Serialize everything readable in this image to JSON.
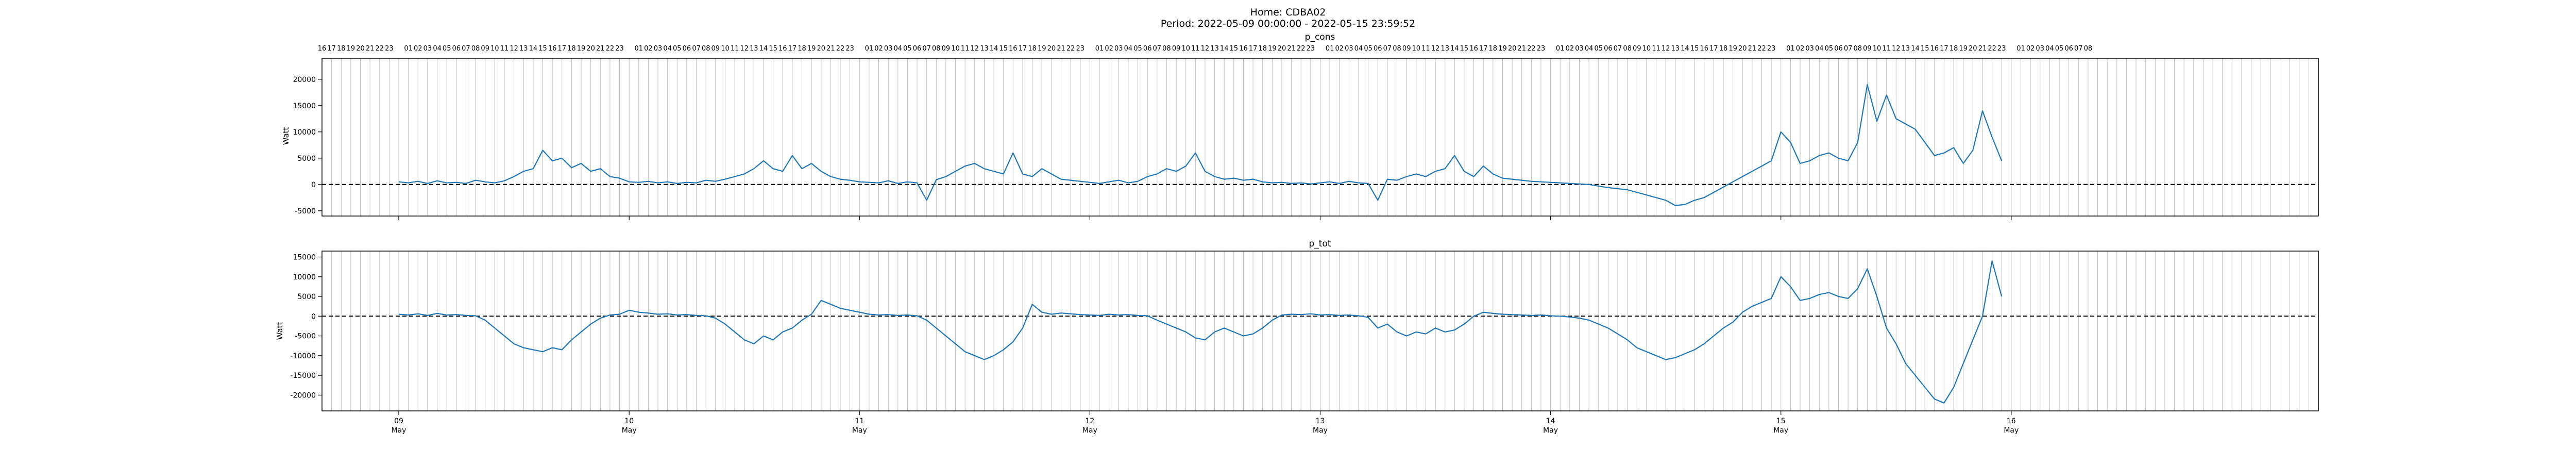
{
  "figure": {
    "title_line1": "Home: CDBA02",
    "title_line2": "Period: 2022-05-09 00:00:00 - 2022-05-15 23:59:52"
  },
  "hour_labels": [
    "16",
    "17",
    "18",
    "19",
    "20",
    "21",
    "22",
    "23",
    "01",
    "02",
    "03",
    "04",
    "05",
    "06",
    "07",
    "08",
    "09",
    "10",
    "11",
    "12",
    "13",
    "14",
    "15",
    "16",
    "17",
    "18",
    "19",
    "20",
    "21",
    "22",
    "23",
    "01",
    "02",
    "03",
    "04",
    "05",
    "06",
    "07",
    "08",
    "09",
    "10",
    "11",
    "12",
    "13",
    "14",
    "15",
    "16",
    "17",
    "18",
    "19",
    "20",
    "21",
    "22",
    "23",
    "01",
    "02",
    "03",
    "04",
    "05",
    "06",
    "07",
    "08",
    "09",
    "10",
    "11",
    "12",
    "13",
    "14",
    "15",
    "16",
    "17",
    "18",
    "19",
    "20",
    "21",
    "22",
    "23",
    "01",
    "02",
    "03",
    "04",
    "05",
    "06",
    "07",
    "08",
    "09",
    "10",
    "11",
    "12",
    "13",
    "14",
    "15",
    "16",
    "17",
    "18",
    "19",
    "20",
    "21",
    "22",
    "23",
    "01",
    "02",
    "03",
    "04",
    "05",
    "06",
    "07",
    "08",
    "09",
    "10",
    "11",
    "12",
    "13",
    "14",
    "15",
    "16",
    "17",
    "18",
    "19",
    "20",
    "21",
    "22",
    "23",
    "01",
    "02",
    "03",
    "04",
    "05",
    "06",
    "07",
    "08",
    "09",
    "10",
    "11",
    "12",
    "13",
    "14",
    "15",
    "16",
    "17",
    "18",
    "19",
    "20",
    "21",
    "22",
    "23",
    "01",
    "02",
    "03",
    "04",
    "05",
    "06",
    "07",
    "08",
    "09",
    "10",
    "11",
    "12",
    "13",
    "14",
    "15",
    "16",
    "17",
    "18",
    "19",
    "20",
    "21",
    "22",
    "23",
    "01",
    "02",
    "03",
    "04",
    "05",
    "06",
    "07",
    "08"
  ],
  "day_ticks": [
    {
      "day": "09",
      "month": "May"
    },
    {
      "day": "10",
      "month": "May"
    },
    {
      "day": "11",
      "month": "May"
    },
    {
      "day": "12",
      "month": "May"
    },
    {
      "day": "13",
      "month": "May"
    },
    {
      "day": "14",
      "month": "May"
    },
    {
      "day": "15",
      "month": "May"
    },
    {
      "day": "16",
      "month": "May"
    }
  ],
  "chart_data": [
    {
      "type": "line",
      "title": "p_cons",
      "ylabel": "Watt",
      "x_start": "2022-05-08 16:00",
      "x_end": "2022-05-17 08:00",
      "ylim": [
        -6000,
        24000
      ],
      "yticks": [
        -5000,
        0,
        5000,
        10000,
        15000,
        20000
      ],
      "zero_line": "dashed",
      "grid": "vertical hourly",
      "series": [
        {
          "color": "#1f77b4",
          "x_start": "2022-05-09 00:00",
          "x_end": "2022-05-15 23:00",
          "step_hours": 1,
          "values": [
            500,
            300,
            600,
            200,
            700,
            300,
            400,
            200,
            800,
            500,
            300,
            700,
            1500,
            2500,
            3000,
            6500,
            4500,
            5000,
            3200,
            4000,
            2500,
            3000,
            1500,
            1200,
            500,
            400,
            600,
            300,
            500,
            200,
            400,
            300,
            800,
            600,
            1000,
            1500,
            2000,
            3000,
            4500,
            3000,
            2500,
            5500,
            3000,
            4000,
            2500,
            1500,
            1000,
            800,
            500,
            400,
            300,
            700,
            200,
            500,
            300,
            -3000,
            900,
            1500,
            2500,
            3500,
            4000,
            3000,
            2500,
            2000,
            6000,
            2000,
            1500,
            3000,
            2000,
            1000,
            800,
            600,
            400,
            200,
            500,
            800,
            300,
            600,
            1500,
            2000,
            3000,
            2500,
            3500,
            6000,
            2500,
            1500,
            1000,
            1200,
            800,
            1000,
            500,
            300,
            400,
            200,
            300,
            100,
            300,
            500,
            200,
            600,
            300,
            200,
            -3000,
            1000,
            800,
            1500,
            2000,
            1500,
            2500,
            3000,
            5500,
            2500,
            1500,
            3500,
            2000,
            1200,
            1000,
            800,
            600,
            500,
            400,
            300,
            200,
            100,
            0,
            -300,
            -600,
            -800,
            -1000,
            -1500,
            -2000,
            -2500,
            -3000,
            -4000,
            -3800,
            -3000,
            -2500,
            -1500,
            -500,
            500,
            1500,
            2500,
            3500,
            4500,
            10000,
            8000,
            4000,
            4500,
            5500,
            6000,
            5000,
            4500,
            8000,
            19000,
            12000,
            17000,
            12500,
            11500,
            10500,
            8000,
            5500,
            6000,
            7000,
            4000,
            6500,
            14000,
            9000,
            4500
          ]
        }
      ]
    },
    {
      "type": "line",
      "title": "p_tot",
      "ylabel": "Watt",
      "x_start": "2022-05-08 16:00",
      "x_end": "2022-05-17 08:00",
      "ylim": [
        -24000,
        16500
      ],
      "yticks": [
        -20000,
        -15000,
        -10000,
        -5000,
        0,
        5000,
        10000,
        15000
      ],
      "zero_line": "dashed",
      "grid": "vertical hourly",
      "series": [
        {
          "color": "#1f77b4",
          "x_start": "2022-05-09 00:00",
          "x_end": "2022-05-15 23:00",
          "step_hours": 1,
          "values": [
            500,
            300,
            600,
            200,
            700,
            300,
            400,
            200,
            100,
            -1000,
            -3000,
            -5000,
            -7000,
            -8000,
            -8500,
            -9000,
            -8000,
            -8500,
            -6000,
            -4000,
            -2000,
            -500,
            300,
            500,
            1500,
            1000,
            800,
            500,
            600,
            300,
            400,
            200,
            100,
            -500,
            -2000,
            -4000,
            -6000,
            -7000,
            -5000,
            -6000,
            -4000,
            -3000,
            -1000,
            500,
            4000,
            3000,
            2000,
            1500,
            1000,
            500,
            300,
            400,
            200,
            300,
            100,
            -1000,
            -3000,
            -5000,
            -7000,
            -9000,
            -10000,
            -11000,
            -10000,
            -8500,
            -6500,
            -3000,
            3000,
            1000,
            500,
            800,
            600,
            400,
            300,
            200,
            500,
            300,
            400,
            200,
            100,
            -1000,
            -2000,
            -3000,
            -4000,
            -5500,
            -6000,
            -4000,
            -3000,
            -4000,
            -5000,
            -4500,
            -3000,
            -1000,
            300,
            500,
            400,
            600,
            300,
            400,
            200,
            300,
            100,
            -300,
            -3000,
            -2000,
            -4000,
            -5000,
            -4000,
            -4500,
            -3000,
            -4000,
            -3500,
            -2000,
            0,
            1000,
            700,
            500,
            400,
            300,
            200,
            300,
            100,
            0,
            -200,
            -500,
            -1000,
            -2000,
            -3000,
            -4500,
            -6000,
            -8000,
            -9000,
            -10000,
            -11000,
            -10500,
            -9500,
            -8500,
            -7000,
            -5000,
            -3000,
            -1500,
            1000,
            2500,
            3500,
            4500,
            10000,
            7500,
            4000,
            4500,
            5500,
            6000,
            5000,
            4500,
            7000,
            12000,
            5000,
            -3000,
            -7000,
            -12000,
            -15000,
            -18000,
            -21000,
            -22000,
            -18000,
            -12000,
            -6000,
            0,
            14000,
            5000
          ]
        }
      ]
    }
  ]
}
